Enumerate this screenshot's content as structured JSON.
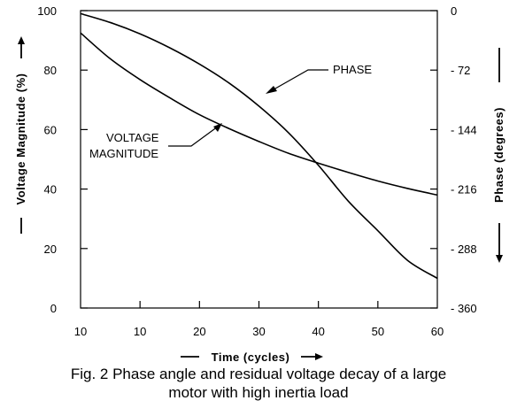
{
  "chart_data": {
    "type": "line",
    "x_tick_labels": [
      "10",
      "10",
      "20",
      "30",
      "40",
      "50",
      "60"
    ],
    "xlabel": "Time (cycles)",
    "ylabel_left": "Voltage Magnitude (%)",
    "ylabel_right": "Phase (degrees)",
    "ylim_left": [
      0,
      100
    ],
    "yticks_left": [
      0,
      20,
      40,
      60,
      80,
      100
    ],
    "ylim_right": [
      -360,
      0
    ],
    "yticks_right": [
      "0",
      "- 72",
      "- 144",
      "- 216",
      "- 288",
      "- 360"
    ],
    "grid": false,
    "series": [
      {
        "name": "VOLTAGE MAGNITUDE",
        "axis": "left",
        "x": [
          0,
          5,
          10,
          15,
          20,
          25,
          30,
          35,
          40,
          45,
          50,
          55,
          60
        ],
        "y": [
          92.5,
          83.8,
          76.8,
          70.7,
          65.0,
          60.3,
          56.0,
          52.0,
          48.7,
          45.6,
          42.7,
          40.2,
          38.0
        ]
      },
      {
        "name": "PHASE",
        "axis": "right",
        "x": [
          0,
          5,
          10,
          15,
          20,
          25,
          30,
          35,
          40,
          45,
          50,
          55,
          60
        ],
        "y": [
          -3.6,
          -14.4,
          -28.1,
          -45.0,
          -64.8,
          -87.8,
          -115.6,
          -148.0,
          -187.2,
          -230.4,
          -266.4,
          -302.4,
          -324.0
        ]
      }
    ],
    "annotations": [
      {
        "text": "PHASE",
        "target": "PHASE"
      },
      {
        "lines": [
          "VOLTAGE",
          "MAGNITUDE"
        ],
        "target": "VOLTAGE MAGNITUDE"
      }
    ]
  },
  "caption": {
    "line1": "Fig. 2 Phase angle and residual voltage decay of a large",
    "line2": "motor with high inertia load"
  }
}
